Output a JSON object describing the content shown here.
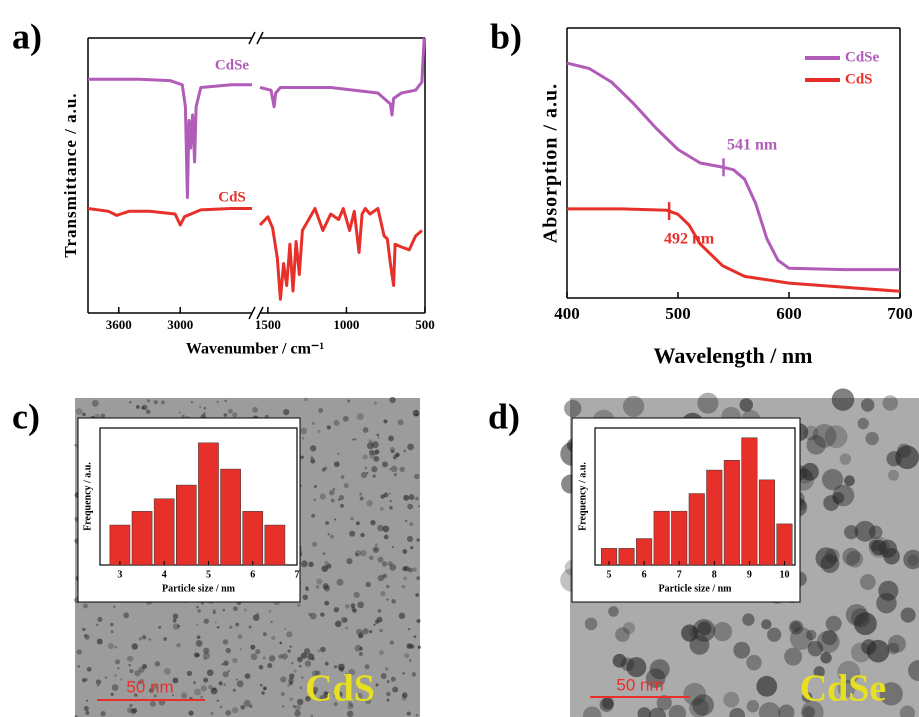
{
  "chart_data": [
    {
      "type": "line",
      "label": "a)",
      "ylabel": "Transmittance / a.u.",
      "xlabel": "Wavenumber / cm⁻¹",
      "ylim": [
        0,
        100
      ],
      "x_segments": [
        {
          "xlim": [
            3900,
            2300
          ],
          "xticks": [
            3600,
            3000
          ]
        },
        {
          "xlim": [
            1550,
            500
          ],
          "xticks": [
            1500,
            1000,
            500
          ]
        }
      ],
      "series": [
        {
          "name": "CdSe",
          "color": "#b05cb8",
          "x": [
            3900,
            3400,
            3100,
            2980,
            2950,
            2930,
            2915,
            2900,
            2880,
            2860,
            2845,
            2800,
            2500,
            2300,
            2000,
            1550,
            1480,
            1460,
            1450,
            1420,
            1100,
            800,
            720,
            710,
            700,
            650,
            560,
            520,
            505
          ],
          "values": [
            85,
            85,
            84.5,
            83,
            75,
            42,
            70,
            60,
            72,
            55,
            75,
            82,
            83,
            83,
            null,
            82,
            81,
            75,
            80,
            82,
            82,
            80,
            76,
            72,
            78,
            80,
            81,
            84,
            100
          ]
        },
        {
          "name": "CdS",
          "color": "#e8302a",
          "x": [
            3900,
            3700,
            3620,
            3580,
            3500,
            3300,
            3050,
            3000,
            2960,
            2800,
            2500,
            2300,
            2000,
            1550,
            1500,
            1470,
            1440,
            1420,
            1400,
            1380,
            1360,
            1340,
            1320,
            1300,
            1280,
            1250,
            1200,
            1150,
            1100,
            1050,
            1020,
            980,
            950,
            920,
            900,
            880,
            850,
            800,
            760,
            740,
            720,
            700,
            690,
            650,
            600,
            560,
            520
          ],
          "values": [
            38,
            37,
            35.5,
            36,
            37,
            37,
            36,
            32,
            35,
            37.5,
            38,
            38,
            null,
            32,
            35,
            31,
            20,
            5,
            18,
            10,
            25,
            8,
            26,
            14,
            30,
            33,
            38,
            30,
            36,
            34,
            38,
            30,
            37,
            22,
            36,
            38,
            36,
            38,
            28,
            27,
            18,
            10,
            25,
            24,
            23,
            28,
            30
          ]
        }
      ]
    },
    {
      "type": "line",
      "label": "b)",
      "ylabel": "Absorption / a.u.",
      "xlabel": "Wavelength / nm",
      "xlim": [
        400,
        700
      ],
      "xticks": [
        400,
        500,
        600,
        700
      ],
      "ylim": [
        0,
        100
      ],
      "legend": "upper right",
      "series": [
        {
          "name": "CdSe",
          "color": "#b05cb8",
          "x": [
            400,
            420,
            440,
            460,
            480,
            500,
            520,
            540,
            550,
            560,
            570,
            580,
            590,
            600,
            650,
            700
          ],
          "values": [
            87,
            85,
            80,
            72,
            63,
            55,
            50,
            48.5,
            47.5,
            44,
            35,
            22,
            14,
            11,
            10.5,
            10.5
          ]
        },
        {
          "name": "CdS",
          "color": "#e8302a",
          "x": [
            400,
            450,
            490,
            500,
            510,
            520,
            540,
            560,
            600,
            650,
            700
          ],
          "values": [
            33,
            33,
            32.5,
            31,
            27,
            20,
            12,
            8,
            5.5,
            4,
            2.5
          ]
        }
      ],
      "annotations": [
        {
          "text": "541 nm",
          "x": 541
        },
        {
          "text": "492 nm",
          "x": 492
        }
      ]
    },
    {
      "type": "histogram",
      "label": "c)",
      "image_label": "CdS",
      "scale_bar": "50 nm",
      "ylabel": "Frequency / a.u.",
      "xlabel": "Particle size / nm",
      "color": "#e8302a",
      "bins": [
        2.75,
        3.25,
        3.75,
        4.25,
        4.75,
        5.25,
        5.75,
        6.25,
        6.75
      ],
      "values": [
        35,
        47,
        58,
        70,
        107,
        84,
        47,
        35
      ],
      "xlim": [
        2.55,
        7
      ],
      "xticks": [
        3,
        4,
        5,
        6,
        7
      ],
      "ylim": [
        0,
        120
      ]
    },
    {
      "type": "histogram",
      "label": "d)",
      "image_label": "CdSe",
      "scale_bar": "50 nm",
      "ylabel": "Frequency / a.u.",
      "xlabel": "Particle size / nm",
      "color": "#e8302a",
      "bins": [
        4.75,
        5.25,
        5.75,
        6.25,
        6.75,
        7.25,
        7.75,
        8.25,
        8.75,
        9.25,
        9.75,
        10.25
      ],
      "values": [
        17,
        17,
        27,
        55,
        55,
        73,
        97,
        107,
        130,
        87,
        42
      ],
      "xlim": [
        4.6,
        10.3
      ],
      "xticks": [
        5,
        6,
        7,
        8,
        9,
        10
      ],
      "ylim": [
        0,
        140
      ]
    }
  ]
}
